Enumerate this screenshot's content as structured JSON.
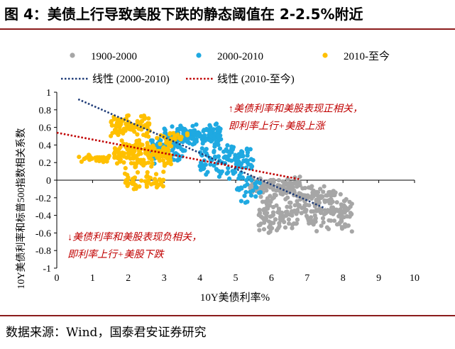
{
  "title": "图 4：美债上行导致美股下跌的静态阈值在 2-2.5%附近",
  "source": "数据来源：Wind，国泰君安证券研究",
  "colors": {
    "rule": "#8b1c1c",
    "s1900": "#a6a6a6",
    "s2000": "#1fa9e1",
    "s2010": "#ffc000",
    "trend2000": "#1f3c78",
    "trend2010": "#c00000",
    "annotation": "#c00000"
  },
  "chart_data": {
    "type": "scatter",
    "xlabel": "10Y美债利率%",
    "ylabel": "10Y美债利率和标普500指数相关系数",
    "xlim": [
      0,
      10
    ],
    "ylim": [
      -1,
      1
    ],
    "xticks": [
      0,
      1,
      2,
      3,
      4,
      5,
      6,
      7,
      8,
      9,
      10
    ],
    "yticks": [
      1,
      0.8,
      0.6,
      0.4,
      0.2,
      0,
      -0.2,
      -0.4,
      -0.6,
      -0.8,
      -1
    ],
    "yticklabels": [
      "1",
      "0.8",
      "0.6",
      "0.4",
      "0.2",
      "0",
      "-0.2",
      "-0.4",
      "-0.6",
      "-0.8",
      "-1"
    ],
    "legend": {
      "position": "top",
      "series": [
        "1900-2000",
        "2000-2010",
        "2010-至今"
      ],
      "trends": [
        "线性 (2000-2010)",
        "线性 (2010-至今)"
      ]
    },
    "series": [
      {
        "name": "1900-2000",
        "clusters": [
          {
            "x": [
              5.4,
              6.8
            ],
            "y": [
              -0.2,
              0.05
            ],
            "n": 120
          },
          {
            "x": [
              5.6,
              8.3
            ],
            "y": [
              -0.62,
              -0.15
            ],
            "n": 230
          },
          {
            "x": [
              6.8,
              7.8
            ],
            "y": [
              -0.3,
              -0.05
            ],
            "n": 60
          }
        ]
      },
      {
        "name": "2000-2010",
        "clusters": [
          {
            "x": [
              3.0,
              4.6
            ],
            "y": [
              0.35,
              0.65
            ],
            "n": 170
          },
          {
            "x": [
              4.0,
              5.5
            ],
            "y": [
              0.0,
              0.45
            ],
            "n": 110
          },
          {
            "x": [
              2.6,
              3.6
            ],
            "y": [
              0.15,
              0.55
            ],
            "n": 60
          },
          {
            "x": [
              5.0,
              5.7
            ],
            "y": [
              -0.35,
              0.1
            ],
            "n": 30
          }
        ]
      },
      {
        "name": "2010-至今",
        "clusters": [
          {
            "x": [
              1.5,
              2.6
            ],
            "y": [
              0.48,
              0.76
            ],
            "n": 90
          },
          {
            "x": [
              1.6,
              3.2
            ],
            "y": [
              0.12,
              0.48
            ],
            "n": 170
          },
          {
            "x": [
              0.6,
              1.5
            ],
            "y": [
              0.2,
              0.3
            ],
            "n": 40
          },
          {
            "x": [
              1.9,
              3.0
            ],
            "y": [
              -0.12,
              0.12
            ],
            "n": 50
          },
          {
            "x": [
              2.8,
              3.7
            ],
            "y": [
              0.45,
              0.55
            ],
            "n": 20
          }
        ]
      }
    ],
    "trendlines": [
      {
        "name": "线性 (2000-2010)",
        "x": [
          0.6,
          7.5
        ],
        "y": [
          0.92,
          -0.32
        ]
      },
      {
        "name": "线性 (2010-至今)",
        "x": [
          0.0,
          6.8
        ],
        "y": [
          0.54,
          0.01
        ]
      }
    ],
    "annotations": [
      {
        "text": "↑美债利率和美股表现正相关，",
        "x": 4.8,
        "y": 0.78
      },
      {
        "text": "即利率上行+美股上涨",
        "x": 4.8,
        "y": 0.58
      },
      {
        "text": "↓美债利率和美股表现负相关，",
        "x": 0.3,
        "y": -0.68
      },
      {
        "text": "即利率上行+美股下跌",
        "x": 0.3,
        "y": -0.88
      }
    ]
  }
}
